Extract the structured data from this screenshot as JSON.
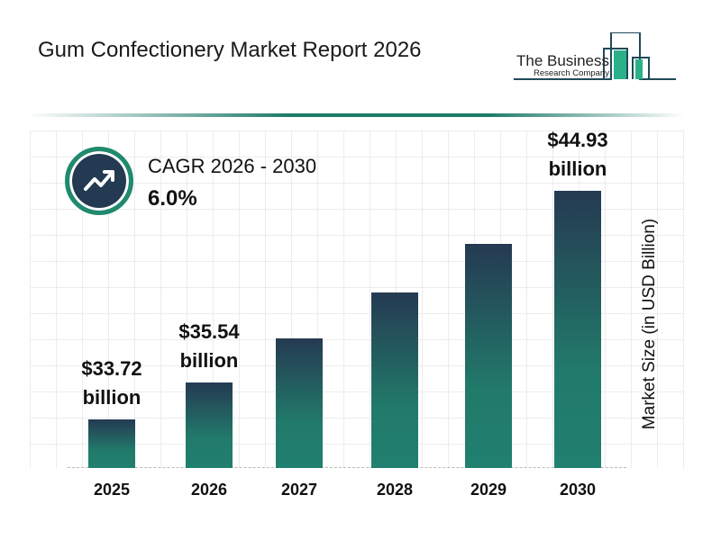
{
  "header": {
    "title": "Gum Confectionery Market Report 2026"
  },
  "logo": {
    "line1": "The Business",
    "line2": "Research Company"
  },
  "cagr": {
    "label": "CAGR 2026 - 2030",
    "value": "6.0%",
    "icon": "trending-up-icon"
  },
  "colors": {
    "bar_top": "#253a52",
    "bar_bottom": "#218070",
    "accent": "#1f8a6e"
  },
  "chart_data": {
    "type": "bar",
    "title": "",
    "xlabel": "",
    "ylabel": "Market Size (in USD Billion)",
    "categories": [
      "2025",
      "2026",
      "2027",
      "2028",
      "2029",
      "2030"
    ],
    "values": [
      33.72,
      35.54,
      37.67,
      39.93,
      42.33,
      44.93
    ],
    "data_labels": [
      {
        "index": 0,
        "amount": "$33.72",
        "unit": "billion"
      },
      {
        "index": 1,
        "amount": "$35.54",
        "unit": "billion"
      },
      {
        "index": 5,
        "amount": "$44.93",
        "unit": "billion"
      }
    ],
    "grid": true,
    "legend": "none"
  }
}
